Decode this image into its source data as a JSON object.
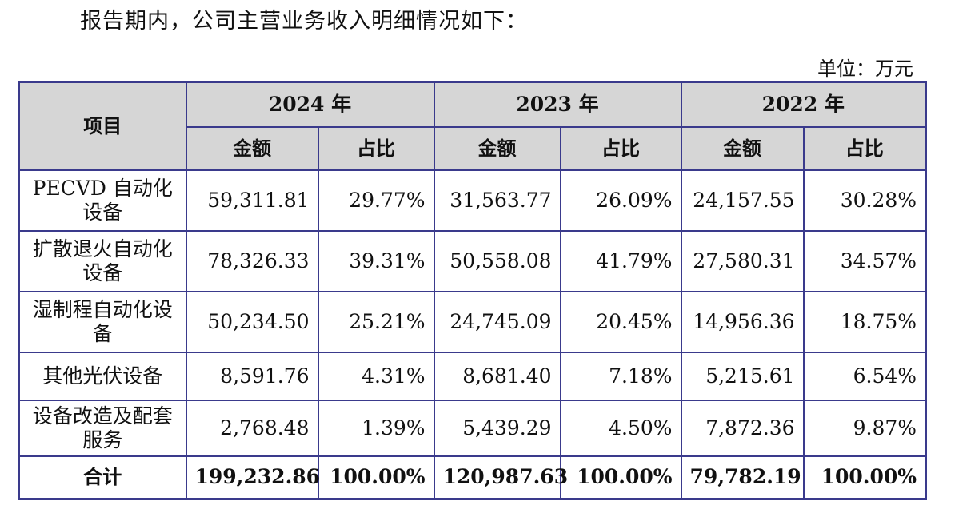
{
  "intro_text": "报告期内，公司主营业务收入明细情况如下：",
  "unit_text": "单位：万元",
  "table": {
    "item_header": "项目",
    "years": [
      "2024 年",
      "2023 年",
      "2022 年"
    ],
    "amount_header": "金额",
    "ratio_header": "占比",
    "rows": [
      {
        "name": "PECVD 自动化设备",
        "v": [
          "59,311.81",
          "29.77%",
          "31,563.77",
          "26.09%",
          "24,157.55",
          "30.28%"
        ]
      },
      {
        "name": "扩散退火自动化设备",
        "v": [
          "78,326.33",
          "39.31%",
          "50,558.08",
          "41.79%",
          "27,580.31",
          "34.57%"
        ]
      },
      {
        "name": "湿制程自动化设备",
        "v": [
          "50,234.50",
          "25.21%",
          "24,745.09",
          "20.45%",
          "14,956.36",
          "18.75%"
        ]
      },
      {
        "name": "其他光伏设备",
        "v": [
          "8,591.76",
          "4.31%",
          "8,681.40",
          "7.18%",
          "5,215.61",
          "6.54%"
        ]
      },
      {
        "name": "设备改造及配套服务",
        "v": [
          "2,768.48",
          "1.39%",
          "5,439.29",
          "4.50%",
          "7,872.36",
          "9.87%"
        ]
      }
    ],
    "total": {
      "name": "合计",
      "v": [
        "199,232.86",
        "100.00%",
        "120,987.63",
        "100.00%",
        "79,782.19",
        "100.00%"
      ]
    }
  }
}
